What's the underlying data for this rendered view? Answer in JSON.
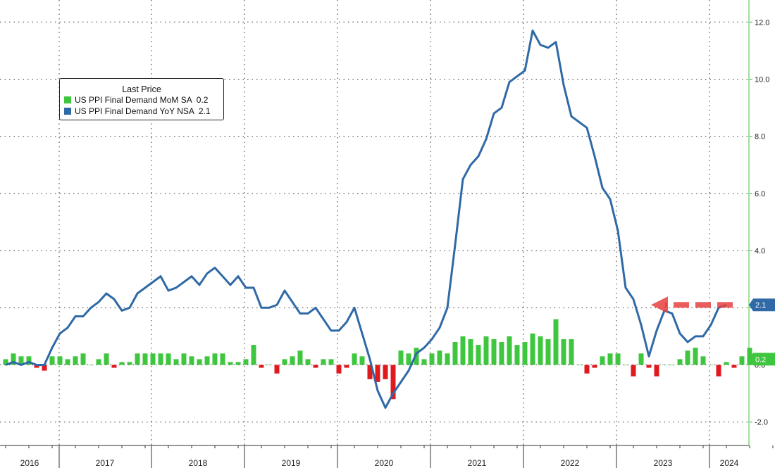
{
  "legend": {
    "title": "Last Price",
    "items": [
      {
        "label": "US PPI Final Demand MoM SA",
        "value": "0.2",
        "color": "#3ec63e"
      },
      {
        "label": "US PPI Final Demand YoY NSA",
        "value": "2.1",
        "color": "#2f69a6"
      }
    ]
  },
  "chart_data": {
    "type": "bar+line",
    "title": "",
    "xlabel": "",
    "ylabel": "",
    "ylim": [
      -2.6,
      12.6
    ],
    "yticks": [
      "12.0",
      "10.0",
      "8.0",
      "6.0",
      "4.0",
      "2.0",
      "0.0",
      "-2.0"
    ],
    "ytick_values": [
      12,
      10,
      8,
      6,
      4,
      2,
      0,
      -2
    ],
    "x_start": "2016-01",
    "x_end": "2024-04",
    "x_labels": [
      "2016",
      "2017",
      "2018",
      "2019",
      "2020",
      "2021",
      "2022",
      "2023",
      "2024"
    ],
    "grid": true,
    "legend_position": "top-left",
    "series": [
      {
        "name": "US PPI Final Demand MoM SA",
        "type": "bar",
        "color_positive": "#3ec63e",
        "color_negative": "#e0191f",
        "last": "0.2",
        "values": [
          0.2,
          0.4,
          0.3,
          0.3,
          -0.1,
          -0.2,
          0.3,
          0.3,
          0.2,
          0.3,
          0.4,
          0.0,
          0.2,
          0.4,
          -0.1,
          0.1,
          0.1,
          0.4,
          0.4,
          0.4,
          0.4,
          0.4,
          0.2,
          0.4,
          0.3,
          0.2,
          0.3,
          0.4,
          0.4,
          0.1,
          0.1,
          0.2,
          0.7,
          -0.1,
          0.0,
          -0.3,
          0.2,
          0.3,
          0.5,
          0.2,
          -0.1,
          0.2,
          0.2,
          -0.3,
          -0.1,
          0.4,
          0.3,
          -0.5,
          -0.6,
          -0.5,
          -1.2,
          0.5,
          0.4,
          0.6,
          0.2,
          0.4,
          0.5,
          0.4,
          0.8,
          1.0,
          0.9,
          0.7,
          1.0,
          0.9,
          0.8,
          1.0,
          0.7,
          0.8,
          1.1,
          1.0,
          0.9,
          1.6,
          0.9,
          0.9,
          0.0,
          -0.3,
          -0.1,
          0.3,
          0.4,
          0.4,
          0.0,
          -0.4,
          0.4,
          -0.1,
          -0.4,
          0.0,
          0.0,
          0.2,
          0.5,
          0.6,
          0.3,
          0.0,
          -0.4,
          0.1,
          -0.1,
          0.3,
          0.6,
          0.2
        ]
      },
      {
        "name": "US PPI Final Demand YoY NSA",
        "type": "line",
        "color": "#2f69a6",
        "last": "2.1",
        "values": [
          0.0,
          0.1,
          0.0,
          0.1,
          0.0,
          0.0,
          0.6,
          1.1,
          1.3,
          1.7,
          1.7,
          2.0,
          2.2,
          2.5,
          2.3,
          1.9,
          2.0,
          2.5,
          2.7,
          2.9,
          3.1,
          2.6,
          2.7,
          2.9,
          3.1,
          2.8,
          3.2,
          3.4,
          3.1,
          2.8,
          3.1,
          2.7,
          2.7,
          2.0,
          2.0,
          2.1,
          2.6,
          2.2,
          1.8,
          1.8,
          2.0,
          1.6,
          1.2,
          1.2,
          1.5,
          2.0,
          1.1,
          0.2,
          -0.9,
          -1.5,
          -1.0,
          -0.6,
          -0.2,
          0.4,
          0.6,
          0.9,
          1.3,
          2.0,
          4.2,
          6.5,
          7.0,
          7.3,
          7.9,
          8.8,
          9.0,
          9.9,
          10.1,
          10.3,
          11.7,
          11.2,
          11.1,
          11.3,
          9.8,
          8.7,
          8.5,
          8.3,
          7.3,
          6.2,
          5.8,
          4.7,
          2.7,
          2.3,
          1.4,
          0.3,
          1.2,
          1.9,
          1.8,
          1.1,
          0.8,
          1.0,
          1.0,
          1.4,
          2.0,
          2.1
        ]
      }
    ],
    "annotation": "2.1"
  }
}
